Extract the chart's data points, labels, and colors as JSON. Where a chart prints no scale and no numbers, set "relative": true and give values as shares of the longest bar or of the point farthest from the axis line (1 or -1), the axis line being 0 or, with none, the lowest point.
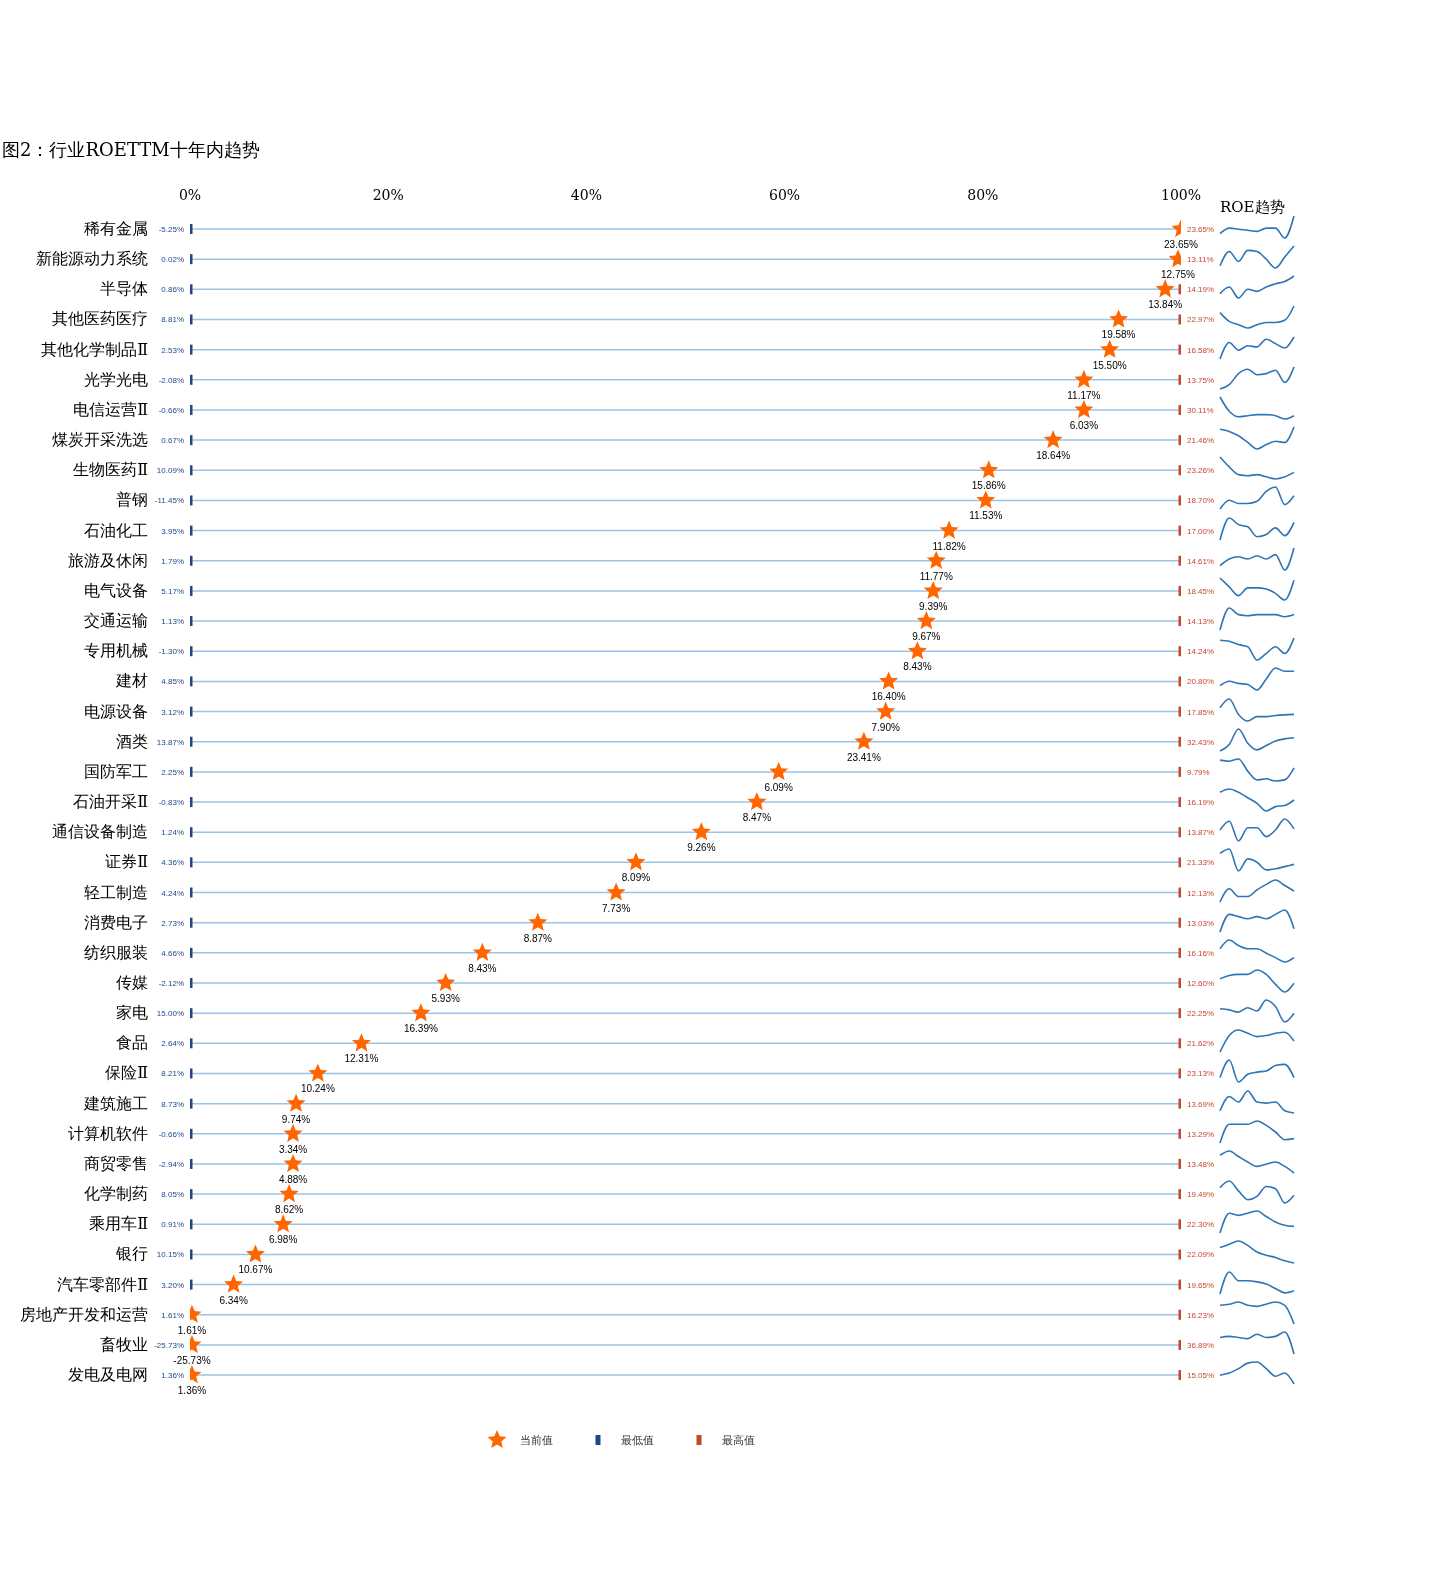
{
  "chart_data": [
    {
      "type": "scatter",
      "title": "图2：行业ROETTM十年内趋势",
      "orientation": "horizontal",
      "categories": [
        "稀有金属",
        "新能源动力系统",
        "半导体",
        "其他医药医疗",
        "其他化学制品Ⅱ",
        "光学光电",
        "电信运营Ⅱ",
        "煤炭开采洗选",
        "生物医药Ⅱ",
        "普钢",
        "石油化工",
        "旅游及休闲",
        "电气设备",
        "交通运输",
        "专用机械",
        "建材",
        "电源设备",
        "酒类",
        "国防军工",
        "石油开采Ⅱ",
        "通信设备制造",
        "证券Ⅱ",
        "轻工制造",
        "消费电子",
        "纺织服装",
        "传媒",
        "家电",
        "食品",
        "保险Ⅱ",
        "建筑施工",
        "计算机软件",
        "商贸零售",
        "化学制药",
        "乘用车Ⅱ",
        "银行",
        "汽车零部件Ⅱ",
        "房地产开发和运营",
        "畜牧业",
        "发电及电网"
      ],
      "xlim": [
        0,
        100
      ],
      "xticks": [
        {
          "value": 0,
          "label": "0%"
        },
        {
          "value": 20,
          "label": "20%"
        },
        {
          "value": 40,
          "label": "40%"
        },
        {
          "value": 60,
          "label": "60%"
        },
        {
          "value": 80,
          "label": "80%"
        },
        {
          "value": 100,
          "label": "100%"
        }
      ],
      "grid": "y",
      "legend": "bottom",
      "series": [
        {
          "name": "最高值",
          "color": "#c8462c",
          "marker": "square",
          "values": [
            null,
            null,
            100,
            100,
            100,
            100,
            100,
            100,
            100,
            100,
            100,
            100,
            100,
            100,
            100,
            100,
            100,
            100,
            100,
            100,
            100,
            100,
            100,
            100,
            100,
            100,
            100,
            100,
            100,
            100,
            100,
            100,
            100,
            100,
            100,
            100,
            100,
            100,
            100
          ]
        },
        {
          "name": "最低值",
          "color": "#1f4788",
          "marker": "square",
          "values": [
            0,
            0,
            0,
            0,
            0,
            0,
            0,
            0,
            0,
            0,
            0,
            0,
            0,
            0,
            0,
            0,
            0,
            0,
            0,
            0,
            0,
            0,
            0,
            0,
            0,
            0,
            0,
            0,
            0,
            0,
            0,
            0,
            0,
            0,
            0,
            0,
            null,
            null,
            null
          ]
        },
        {
          "name": "当前值",
          "color": "#ff6600",
          "marker": "star",
          "values": [
            100,
            99.7,
            98.4,
            93.7,
            92.8,
            90.2,
            90.2,
            87.1,
            80.6,
            80.3,
            76.6,
            75.3,
            75.0,
            74.3,
            73.4,
            70.5,
            70.2,
            68.0,
            59.4,
            57.2,
            51.6,
            45.0,
            43.0,
            35.1,
            29.5,
            25.8,
            23.3,
            17.3,
            12.9,
            10.7,
            10.4,
            10.4,
            10.0,
            9.4,
            6.6,
            4.4,
            0.2,
            0.2,
            0.2
          ]
        }
      ],
      "annotations": [
        {
          "text": "-5.25%",
          "x": 0,
          "y": "稀有金属"
        },
        {
          "text": "23.65%",
          "x": 100,
          "y": "稀有金属"
        },
        {
          "text": "23.65%",
          "x": 100,
          "y": "稀有金属"
        },
        {
          "text": "0.02%",
          "x": 0,
          "y": "新能源动力系统"
        },
        {
          "text": "12.75%",
          "x": 99.7,
          "y": "新能源动力系统"
        },
        {
          "text": "13.11%",
          "x": 100,
          "y": "新能源动力系统"
        },
        {
          "text": "0.86%",
          "x": 0,
          "y": "半导体"
        },
        {
          "text": "13.84%",
          "x": 98.4,
          "y": "半导体"
        },
        {
          "text": "14.19%",
          "x": 100,
          "y": "半导体"
        },
        {
          "text": "8.81%",
          "x": 0,
          "y": "其他医药医疗"
        },
        {
          "text": "19.58%",
          "x": 93.7,
          "y": "其他医药医疗"
        },
        {
          "text": "22.97%",
          "x": 100,
          "y": "其他医药医疗"
        },
        {
          "text": "2.53%",
          "x": 0,
          "y": "其他化学制品Ⅱ"
        },
        {
          "text": "15.50%",
          "x": 92.8,
          "y": "其他化学制品Ⅱ"
        },
        {
          "text": "16.58%",
          "x": 100,
          "y": "其他化学制品Ⅱ"
        },
        {
          "text": "-2.08%",
          "x": 0,
          "y": "光学光电"
        },
        {
          "text": "11.17%",
          "x": 90.2,
          "y": "光学光电"
        },
        {
          "text": "13.75%",
          "x": 100,
          "y": "光学光电"
        },
        {
          "text": "-0.66%",
          "x": 0,
          "y": "电信运营Ⅱ"
        },
        {
          "text": "6.03%",
          "x": 90.2,
          "y": "电信运营Ⅱ"
        },
        {
          "text": "30.11%",
          "x": 100,
          "y": "电信运营Ⅱ"
        },
        {
          "text": "0.67%",
          "x": 0,
          "y": "煤炭开采洗选"
        },
        {
          "text": "18.64%",
          "x": 87.1,
          "y": "煤炭开采洗选"
        },
        {
          "text": "21.46%",
          "x": 100,
          "y": "煤炭开采洗选"
        },
        {
          "text": "10.09%",
          "x": 0,
          "y": "生物医药Ⅱ"
        },
        {
          "text": "15.86%",
          "x": 80.6,
          "y": "生物医药Ⅱ"
        },
        {
          "text": "23.26%",
          "x": 100,
          "y": "生物医药Ⅱ"
        },
        {
          "text": "-11.45%",
          "x": 0,
          "y": "普钢"
        },
        {
          "text": "11.53%",
          "x": 80.3,
          "y": "普钢"
        },
        {
          "text": "18.70%",
          "x": 100,
          "y": "普钢"
        },
        {
          "text": "3.95%",
          "x": 0,
          "y": "石油化工"
        },
        {
          "text": "11.82%",
          "x": 76.6,
          "y": "石油化工"
        },
        {
          "text": "17.00%",
          "x": 100,
          "y": "石油化工"
        },
        {
          "text": "1.79%",
          "x": 0,
          "y": "旅游及休闲"
        },
        {
          "text": "11.77%",
          "x": 75.3,
          "y": "旅游及休闲"
        },
        {
          "text": "14.61%",
          "x": 100,
          "y": "旅游及休闲"
        },
        {
          "text": "5.17%",
          "x": 0,
          "y": "电气设备"
        },
        {
          "text": "9.39%",
          "x": 75.0,
          "y": "电气设备"
        },
        {
          "text": "18.45%",
          "x": 100,
          "y": "电气设备"
        },
        {
          "text": "1.13%",
          "x": 0,
          "y": "交通运输"
        },
        {
          "text": "9.67%",
          "x": 74.3,
          "y": "交通运输"
        },
        {
          "text": "14.13%",
          "x": 100,
          "y": "交通运输"
        },
        {
          "text": "-1.30%",
          "x": 0,
          "y": "专用机械"
        },
        {
          "text": "8.43%",
          "x": 73.4,
          "y": "专用机械"
        },
        {
          "text": "14.24%",
          "x": 100,
          "y": "专用机械"
        },
        {
          "text": "4.85%",
          "x": 0,
          "y": "建材"
        },
        {
          "text": "16.40%",
          "x": 70.5,
          "y": "建材"
        },
        {
          "text": "20.80%",
          "x": 100,
          "y": "建材"
        },
        {
          "text": "3.12%",
          "x": 0,
          "y": "电源设备"
        },
        {
          "text": "7.90%",
          "x": 70.2,
          "y": "电源设备"
        },
        {
          "text": "17.85%",
          "x": 100,
          "y": "电源设备"
        },
        {
          "text": "13.87%",
          "x": 0,
          "y": "酒类"
        },
        {
          "text": "23.41%",
          "x": 68.0,
          "y": "酒类"
        },
        {
          "text": "32.43%",
          "x": 100,
          "y": "酒类"
        },
        {
          "text": "2.25%",
          "x": 0,
          "y": "国防军工"
        },
        {
          "text": "6.09%",
          "x": 59.4,
          "y": "国防军工"
        },
        {
          "text": "9.79%",
          "x": 100,
          "y": "国防军工"
        },
        {
          "text": "-0.83%",
          "x": 0,
          "y": "石油开采Ⅱ"
        },
        {
          "text": "8.47%",
          "x": 57.2,
          "y": "石油开采Ⅱ"
        },
        {
          "text": "16.19%",
          "x": 100,
          "y": "石油开采Ⅱ"
        },
        {
          "text": "1.24%",
          "x": 0,
          "y": "通信设备制造"
        },
        {
          "text": "9.26%",
          "x": 51.6,
          "y": "通信设备制造"
        },
        {
          "text": "13.87%",
          "x": 100,
          "y": "通信设备制造"
        },
        {
          "text": "4.36%",
          "x": 0,
          "y": "证券Ⅱ"
        },
        {
          "text": "8.09%",
          "x": 45.0,
          "y": "证券Ⅱ"
        },
        {
          "text": "21.33%",
          "x": 100,
          "y": "证券Ⅱ"
        },
        {
          "text": "4.24%",
          "x": 0,
          "y": "轻工制造"
        },
        {
          "text": "7.73%",
          "x": 43.0,
          "y": "轻工制造"
        },
        {
          "text": "12.13%",
          "x": 100,
          "y": "轻工制造"
        },
        {
          "text": "2.73%",
          "x": 0,
          "y": "消费电子"
        },
        {
          "text": "8.87%",
          "x": 35.1,
          "y": "消费电子"
        },
        {
          "text": "13.03%",
          "x": 100,
          "y": "消费电子"
        },
        {
          "text": "4.66%",
          "x": 0,
          "y": "纺织服装"
        },
        {
          "text": "8.43%",
          "x": 29.5,
          "y": "纺织服装"
        },
        {
          "text": "16.16%",
          "x": 100,
          "y": "纺织服装"
        },
        {
          "text": "-2.12%",
          "x": 0,
          "y": "传媒"
        },
        {
          "text": "5.93%",
          "x": 25.8,
          "y": "传媒"
        },
        {
          "text": "12.60%",
          "x": 100,
          "y": "传媒"
        },
        {
          "text": "15.00%",
          "x": 0,
          "y": "家电"
        },
        {
          "text": "16.39%",
          "x": 23.3,
          "y": "家电"
        },
        {
          "text": "22.25%",
          "x": 100,
          "y": "家电"
        },
        {
          "text": "2.64%",
          "x": 0,
          "y": "食品"
        },
        {
          "text": "12.31%",
          "x": 17.3,
          "y": "食品"
        },
        {
          "text": "21.62%",
          "x": 100,
          "y": "食品"
        },
        {
          "text": "8.21%",
          "x": 0,
          "y": "保险Ⅱ"
        },
        {
          "text": "10.24%",
          "x": 12.9,
          "y": "保险Ⅱ"
        },
        {
          "text": "23.13%",
          "x": 100,
          "y": "保险Ⅱ"
        },
        {
          "text": "8.73%",
          "x": 0,
          "y": "建筑施工"
        },
        {
          "text": "9.74%",
          "x": 10.7,
          "y": "建筑施工"
        },
        {
          "text": "13.69%",
          "x": 100,
          "y": "建筑施工"
        },
        {
          "text": "-0.66%",
          "x": 0,
          "y": "计算机软件"
        },
        {
          "text": "3.34%",
          "x": 10.4,
          "y": "计算机软件"
        },
        {
          "text": "13.29%",
          "x": 100,
          "y": "计算机软件"
        },
        {
          "text": "-2.94%",
          "x": 0,
          "y": "商贸零售"
        },
        {
          "text": "4.88%",
          "x": 10.4,
          "y": "商贸零售"
        },
        {
          "text": "13.48%",
          "x": 100,
          "y": "商贸零售"
        },
        {
          "text": "8.05%",
          "x": 0,
          "y": "化学制药"
        },
        {
          "text": "8.62%",
          "x": 10.0,
          "y": "化学制药"
        },
        {
          "text": "19.49%",
          "x": 100,
          "y": "化学制药"
        },
        {
          "text": "0.91%",
          "x": 0,
          "y": "乘用车Ⅱ"
        },
        {
          "text": "6.98%",
          "x": 9.4,
          "y": "乘用车Ⅱ"
        },
        {
          "text": "22.30%",
          "x": 100,
          "y": "乘用车Ⅱ"
        },
        {
          "text": "10.15%",
          "x": 0,
          "y": "银行"
        },
        {
          "text": "10.67%",
          "x": 6.6,
          "y": "银行"
        },
        {
          "text": "22.09%",
          "x": 100,
          "y": "银行"
        },
        {
          "text": "3.20%",
          "x": 0,
          "y": "汽车零部件Ⅱ"
        },
        {
          "text": "6.34%",
          "x": 4.4,
          "y": "汽车零部件Ⅱ"
        },
        {
          "text": "19.65%",
          "x": 100,
          "y": "汽车零部件Ⅱ"
        },
        {
          "text": "1.61%",
          "x": 0,
          "y": "房地产开发和运营"
        },
        {
          "text": "1.61%",
          "x": 0.2,
          "y": "房地产开发和运营"
        },
        {
          "text": "16.23%",
          "x": 100,
          "y": "房地产开发和运营"
        },
        {
          "text": "-25.73%",
          "x": 0,
          "y": "畜牧业"
        },
        {
          "text": "-25.73%",
          "x": 0.2,
          "y": "畜牧业"
        },
        {
          "text": "36.89%",
          "x": 100,
          "y": "畜牧业"
        },
        {
          "text": "1.36%",
          "x": 0,
          "y": "发电及电网"
        },
        {
          "text": "1.36%",
          "x": 0.2,
          "y": "发电及电网"
        },
        {
          "text": "15.05%",
          "x": 100,
          "y": "发电及电网"
        }
      ]
    },
    {
      "type": "line",
      "title": "ROE趋势",
      "relative": true,
      "color": "#2e75b6",
      "categories": [
        null,
        null,
        null,
        null,
        null,
        null,
        null,
        null,
        null
      ],
      "values": [
        0.2,
        0.45,
        0.4,
        0.35,
        0.3,
        0.45,
        0.45,
        0,
        1
      ]
    },
    {
      "type": "line",
      "relative": true,
      "color": "#2e75b6",
      "categories": [
        null,
        null,
        null,
        null,
        null,
        null,
        null,
        null,
        null
      ],
      "values": [
        0.1,
        0.75,
        0.3,
        0.8,
        0.75,
        0.4,
        0,
        0.5,
        1
      ]
    },
    {
      "type": "line",
      "relative": true,
      "color": "#2e75b6",
      "categories": [
        null,
        null,
        null,
        null,
        null,
        null,
        null,
        null,
        null
      ],
      "values": [
        0.2,
        0.5,
        0,
        0.4,
        0.3,
        0.5,
        0.65,
        0.75,
        1
      ]
    },
    {
      "type": "line",
      "relative": true,
      "color": "#2e75b6",
      "categories": [
        null,
        null,
        null,
        null,
        null,
        null,
        null,
        null,
        null
      ],
      "values": [
        0.7,
        0.3,
        0.15,
        0,
        0.15,
        0.25,
        0.25,
        0.35,
        1
      ]
    },
    {
      "type": "line",
      "relative": true,
      "color": "#2e75b6",
      "categories": [
        null,
        null,
        null,
        null,
        null,
        null,
        null,
        null,
        null
      ],
      "values": [
        0,
        0.75,
        0.4,
        0.6,
        0.55,
        0.9,
        0.7,
        0.5,
        1
      ]
    },
    {
      "type": "line",
      "relative": true,
      "color": "#2e75b6",
      "categories": [
        null,
        null,
        null,
        null,
        null,
        null,
        null,
        null,
        null
      ],
      "values": [
        0,
        0.2,
        0.7,
        0.9,
        0.65,
        0.7,
        0.85,
        0.3,
        1
      ]
    },
    {
      "type": "line",
      "relative": true,
      "color": "#2e75b6",
      "categories": [
        null,
        null,
        null,
        null,
        null,
        null,
        null,
        null,
        null
      ],
      "values": [
        1,
        0.35,
        0.1,
        0.15,
        0.2,
        0.2,
        0.15,
        0,
        0.15
      ]
    },
    {
      "type": "line",
      "relative": true,
      "color": "#2e75b6",
      "categories": [
        null,
        null,
        null,
        null,
        null,
        null,
        null,
        null,
        null
      ],
      "values": [
        0.9,
        0.8,
        0.6,
        0.3,
        0,
        0.2,
        0.35,
        0.3,
        1
      ]
    },
    {
      "type": "line",
      "relative": true,
      "color": "#2e75b6",
      "categories": [
        null,
        null,
        null,
        null,
        null,
        null,
        null,
        null,
        null
      ],
      "values": [
        1,
        0.55,
        0.2,
        0.15,
        0.2,
        0.1,
        0,
        0.1,
        0.3
      ]
    },
    {
      "type": "line",
      "relative": true,
      "color": "#2e75b6",
      "categories": [
        null,
        null,
        null,
        null,
        null,
        null,
        null,
        null,
        null
      ],
      "values": [
        0,
        0.4,
        0.25,
        0.25,
        0.35,
        0.8,
        1,
        0.2,
        0.6
      ]
    },
    {
      "type": "line",
      "relative": true,
      "color": "#2e75b6",
      "categories": [
        null,
        null,
        null,
        null,
        null,
        null,
        null,
        null,
        null
      ],
      "values": [
        0,
        1,
        0.7,
        0.6,
        0.15,
        0.25,
        0.55,
        0.2,
        0.8
      ]
    },
    {
      "type": "line",
      "relative": true,
      "color": "#2e75b6",
      "categories": [
        null,
        null,
        null,
        null,
        null,
        null,
        null,
        null,
        null
      ],
      "values": [
        0.2,
        0.5,
        0.6,
        0.5,
        0.65,
        0.5,
        0.7,
        0,
        1
      ]
    },
    {
      "type": "line",
      "relative": true,
      "color": "#2e75b6",
      "categories": [
        null,
        null,
        null,
        null,
        null,
        null,
        null,
        null,
        null
      ],
      "values": [
        1,
        0.6,
        0.2,
        0.55,
        0.55,
        0.5,
        0.3,
        0,
        0.9
      ]
    },
    {
      "type": "line",
      "relative": true,
      "color": "#2e75b6",
      "categories": [
        null,
        null,
        null,
        null,
        null,
        null,
        null,
        null,
        null
      ],
      "values": [
        0,
        1,
        0.7,
        0.65,
        0.7,
        0.7,
        0.7,
        0.6,
        0.7
      ]
    },
    {
      "type": "line",
      "relative": true,
      "color": "#2e75b6",
      "categories": [
        null,
        null,
        null,
        null,
        null,
        null,
        null,
        null,
        null
      ],
      "values": [
        0.9,
        0.85,
        0.7,
        0.6,
        0,
        0.3,
        0.6,
        0.3,
        1
      ]
    },
    {
      "type": "line",
      "relative": true,
      "color": "#2e75b6",
      "categories": [
        null,
        null,
        null,
        null,
        null,
        null,
        null,
        null,
        null
      ],
      "values": [
        0.2,
        0.4,
        0.3,
        0.25,
        0,
        0.5,
        1,
        0.85,
        0.85
      ]
    },
    {
      "type": "line",
      "relative": true,
      "color": "#2e75b6",
      "categories": [
        null,
        null,
        null,
        null,
        null,
        null,
        null,
        null,
        null
      ],
      "values": [
        0.6,
        1,
        0.3,
        0,
        0.2,
        0.2,
        0.25,
        0.28,
        0.3
      ]
    },
    {
      "type": "line",
      "relative": true,
      "color": "#2e75b6",
      "categories": [
        null,
        null,
        null,
        null,
        null,
        null,
        null,
        null,
        null
      ],
      "values": [
        0,
        0.3,
        1,
        0.35,
        0.05,
        0.25,
        0.45,
        0.55,
        0.6
      ]
    },
    {
      "type": "line",
      "relative": true,
      "color": "#2e75b6",
      "categories": [
        null,
        null,
        null,
        null,
        null,
        null,
        null,
        null,
        null
      ],
      "values": [
        0.95,
        0.9,
        1,
        0.45,
        0.05,
        0.1,
        0,
        0.05,
        0.6
      ]
    },
    {
      "type": "line",
      "relative": true,
      "color": "#2e75b6",
      "categories": [
        null,
        null,
        null,
        null,
        null,
        null,
        null,
        null,
        null
      ],
      "values": [
        0.85,
        1,
        0.85,
        0.6,
        0.35,
        0,
        0.2,
        0.25,
        0.5
      ]
    },
    {
      "type": "line",
      "relative": true,
      "color": "#2e75b6",
      "categories": [
        null,
        null,
        null,
        null,
        null,
        null,
        null,
        null,
        null
      ],
      "values": [
        0.5,
        0.9,
        0,
        0.6,
        0.6,
        0.2,
        0.5,
        1,
        0.55
      ]
    },
    {
      "type": "line",
      "relative": true,
      "color": "#2e75b6",
      "categories": [
        null,
        null,
        null,
        null,
        null,
        null,
        null,
        null,
        null
      ],
      "values": [
        0.8,
        1,
        0,
        0.55,
        0.4,
        0.05,
        0.1,
        0.2,
        0.3
      ]
    },
    {
      "type": "line",
      "relative": true,
      "color": "#2e75b6",
      "categories": [
        null,
        null,
        null,
        null,
        null,
        null,
        null,
        null,
        null
      ],
      "values": [
        0,
        0.6,
        0.25,
        0.25,
        0.55,
        0.8,
        1,
        0.75,
        0.5
      ]
    },
    {
      "type": "line",
      "relative": true,
      "color": "#2e75b6",
      "categories": [
        null,
        null,
        null,
        null,
        null,
        null,
        null,
        null,
        null
      ],
      "values": [
        0,
        0.8,
        0.7,
        0.6,
        0.7,
        0.6,
        0.8,
        1,
        0.15
      ]
    },
    {
      "type": "line",
      "relative": true,
      "color": "#2e75b6",
      "categories": [
        null,
        null,
        null,
        null,
        null,
        null,
        null,
        null,
        null
      ],
      "values": [
        0.6,
        1,
        0.75,
        0.6,
        0.6,
        0.4,
        0.2,
        0,
        0.2
      ]
    },
    {
      "type": "line",
      "relative": true,
      "color": "#2e75b6",
      "categories": [
        null,
        null,
        null,
        null,
        null,
        null,
        null,
        null,
        null
      ],
      "values": [
        0.6,
        0.75,
        0.8,
        0.8,
        1,
        0.8,
        0.35,
        0,
        0.4
      ]
    },
    {
      "type": "line",
      "relative": true,
      "color": "#2e75b6",
      "categories": [
        null,
        null,
        null,
        null,
        null,
        null,
        null,
        null,
        null
      ],
      "values": [
        0.6,
        0.55,
        0.45,
        0.65,
        0.5,
        1,
        0.7,
        0,
        0.4
      ]
    },
    {
      "type": "line",
      "relative": true,
      "color": "#2e75b6",
      "categories": [
        null,
        null,
        null,
        null,
        null,
        null,
        null,
        null,
        null
      ],
      "values": [
        0,
        0.75,
        1,
        0.85,
        0.7,
        0.75,
        0.85,
        0.9,
        0.5
      ]
    },
    {
      "type": "line",
      "relative": true,
      "color": "#2e75b6",
      "categories": [
        null,
        null,
        null,
        null,
        null,
        null,
        null,
        null,
        null
      ],
      "values": [
        0.2,
        1,
        0,
        0.35,
        0.45,
        0.5,
        0.75,
        0.8,
        0.2
      ]
    },
    {
      "type": "line",
      "relative": true,
      "color": "#2e75b6",
      "categories": [
        null,
        null,
        null,
        null,
        null,
        null,
        null,
        null,
        null
      ],
      "values": [
        0.1,
        0.75,
        0.5,
        1,
        0.5,
        0.45,
        0.5,
        0.1,
        0
      ]
    },
    {
      "type": "line",
      "relative": true,
      "color": "#2e75b6",
      "categories": [
        null,
        null,
        null,
        null,
        null,
        null,
        null,
        null,
        null
      ],
      "values": [
        0,
        0.85,
        0.85,
        0.85,
        1,
        0.8,
        0.5,
        0.15,
        0.2
      ]
    },
    {
      "type": "line",
      "relative": true,
      "color": "#2e75b6",
      "categories": [
        null,
        null,
        null,
        null,
        null,
        null,
        null,
        null,
        null
      ],
      "values": [
        0.8,
        1,
        0.75,
        0.5,
        0.3,
        0.4,
        0.5,
        0.3,
        0
      ]
    },
    {
      "type": "line",
      "relative": true,
      "color": "#2e75b6",
      "categories": [
        null,
        null,
        null,
        null,
        null,
        null,
        null,
        null,
        null
      ],
      "values": [
        0.7,
        1,
        0.55,
        0.15,
        0.3,
        0.75,
        0.65,
        0,
        0.35
      ]
    },
    {
      "type": "line",
      "relative": true,
      "color": "#2e75b6",
      "categories": [
        null,
        null,
        null,
        null,
        null,
        null,
        null,
        null,
        null
      ],
      "values": [
        0,
        0.9,
        0.8,
        0.9,
        1,
        0.75,
        0.5,
        0.35,
        0.3
      ]
    },
    {
      "type": "line",
      "relative": true,
      "color": "#2e75b6",
      "categories": [
        null,
        null,
        null,
        null,
        null,
        null,
        null,
        null,
        null
      ],
      "values": [
        0.7,
        0.85,
        1,
        0.8,
        0.5,
        0.35,
        0.25,
        0.1,
        0
      ]
    },
    {
      "type": "line",
      "relative": true,
      "color": "#2e75b6",
      "categories": [
        null,
        null,
        null,
        null,
        null,
        null,
        null,
        null,
        null
      ],
      "values": [
        0,
        1,
        0.6,
        0.6,
        0.55,
        0.45,
        0.25,
        0.05,
        0.15
      ]
    },
    {
      "type": "line",
      "relative": true,
      "color": "#2e75b6",
      "categories": [
        null,
        null,
        null,
        null,
        null,
        null,
        null,
        null,
        null
      ],
      "values": [
        0.85,
        0.9,
        1,
        0.85,
        0.8,
        0.9,
        1,
        0.85,
        0
      ]
    },
    {
      "type": "line",
      "relative": true,
      "color": "#2e75b6",
      "categories": [
        null,
        null,
        null,
        null,
        null,
        null,
        null,
        null,
        null
      ],
      "values": [
        0.75,
        0.8,
        0.75,
        0.7,
        0.9,
        0.75,
        0.8,
        1,
        0
      ]
    },
    {
      "type": "line",
      "relative": true,
      "color": "#2e75b6",
      "categories": [
        null,
        null,
        null,
        null,
        null,
        null,
        null,
        null,
        null
      ],
      "values": [
        0.4,
        0.5,
        0.7,
        0.95,
        1,
        0.7,
        0.35,
        0.5,
        0
      ]
    }
  ]
}
